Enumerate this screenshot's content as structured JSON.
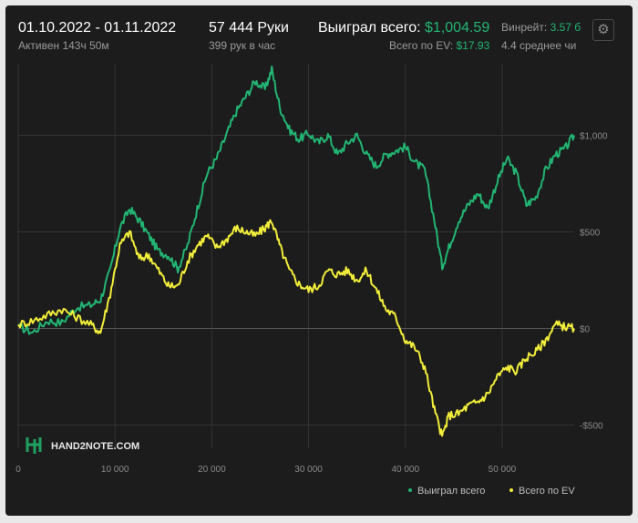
{
  "header": {
    "date_range": "01.10.2022 - 01.11.2022",
    "active": "Активен 143ч 50м",
    "hands": "57 444 Руки",
    "hands_per_hour": "399 рук в час",
    "won_label": "Выиграл всего:",
    "won_value": "$1,004.59",
    "ev_label": "Всего по EV:",
    "ev_value": "$17.93",
    "winrate_label": "Винрейт:",
    "winrate_value": "3.57 б",
    "avg_label": "4.4 среднее чи"
  },
  "logo": {
    "text": "HAND2NOTE.COM"
  },
  "colors": {
    "won": "#22b573",
    "ev": "#f2ee3a",
    "background": "#1c1c1c",
    "grid": "#333333",
    "zero": "#555555"
  },
  "chart_data": {
    "type": "line",
    "xlim": [
      0,
      57444
    ],
    "ylim": [
      -620,
      1370
    ],
    "x_ticks": [
      0,
      10000,
      20000,
      30000,
      40000,
      50000
    ],
    "x_tick_labels": [
      "0",
      "10 000",
      "20 000",
      "30 000",
      "40 000",
      "50 000"
    ],
    "y_ticks": [
      -500,
      0,
      500,
      1000
    ],
    "y_tick_labels": [
      "-$500",
      "$0",
      "$500",
      "$1,000"
    ],
    "legend_position": "bottom-right",
    "series": [
      {
        "name": "Выиграл всего",
        "color": "#22b573",
        "points": [
          [
            0,
            10
          ],
          [
            1500,
            -20
          ],
          [
            3000,
            40
          ],
          [
            4500,
            30
          ],
          [
            6000,
            110
          ],
          [
            7500,
            120
          ],
          [
            8500,
            150
          ],
          [
            9500,
            300
          ],
          [
            10500,
            520
          ],
          [
            11500,
            620
          ],
          [
            12500,
            560
          ],
          [
            13500,
            480
          ],
          [
            14500,
            400
          ],
          [
            15500,
            380
          ],
          [
            16500,
            310
          ],
          [
            17500,
            430
          ],
          [
            18500,
            620
          ],
          [
            19500,
            800
          ],
          [
            20500,
            880
          ],
          [
            21500,
            1000
          ],
          [
            22500,
            1120
          ],
          [
            23500,
            1200
          ],
          [
            24500,
            1280
          ],
          [
            25500,
            1240
          ],
          [
            26200,
            1340
          ],
          [
            27000,
            1150
          ],
          [
            28000,
            1030
          ],
          [
            29000,
            980
          ],
          [
            30000,
            1010
          ],
          [
            31000,
            960
          ],
          [
            32000,
            1000
          ],
          [
            33000,
            900
          ],
          [
            34000,
            960
          ],
          [
            35000,
            1000
          ],
          [
            36000,
            900
          ],
          [
            37000,
            840
          ],
          [
            38000,
            900
          ],
          [
            39000,
            920
          ],
          [
            40000,
            940
          ],
          [
            41000,
            860
          ],
          [
            42000,
            820
          ],
          [
            43000,
            560
          ],
          [
            43800,
            320
          ],
          [
            44500,
            420
          ],
          [
            45500,
            560
          ],
          [
            46500,
            640
          ],
          [
            47500,
            700
          ],
          [
            48500,
            620
          ],
          [
            49500,
            760
          ],
          [
            50500,
            880
          ],
          [
            51500,
            800
          ],
          [
            52500,
            640
          ],
          [
            53500,
            680
          ],
          [
            54500,
            820
          ],
          [
            55500,
            900
          ],
          [
            56500,
            930
          ],
          [
            57444,
            1000
          ]
        ]
      },
      {
        "name": "Всего по EV",
        "color": "#f2ee3a",
        "points": [
          [
            0,
            20
          ],
          [
            1500,
            40
          ],
          [
            3000,
            70
          ],
          [
            4500,
            100
          ],
          [
            6000,
            60
          ],
          [
            7500,
            20
          ],
          [
            8500,
            -20
          ],
          [
            9500,
            180
          ],
          [
            10500,
            430
          ],
          [
            11500,
            500
          ],
          [
            12500,
            360
          ],
          [
            13500,
            380
          ],
          [
            14500,
            300
          ],
          [
            15500,
            220
          ],
          [
            16500,
            220
          ],
          [
            17500,
            350
          ],
          [
            18500,
            430
          ],
          [
            19500,
            480
          ],
          [
            20500,
            420
          ],
          [
            21500,
            460
          ],
          [
            22500,
            520
          ],
          [
            23500,
            500
          ],
          [
            24500,
            480
          ],
          [
            25500,
            520
          ],
          [
            26200,
            560
          ],
          [
            27000,
            430
          ],
          [
            28000,
            300
          ],
          [
            29000,
            230
          ],
          [
            30000,
            200
          ],
          [
            31000,
            220
          ],
          [
            32000,
            300
          ],
          [
            33000,
            280
          ],
          [
            34000,
            300
          ],
          [
            35000,
            250
          ],
          [
            36000,
            300
          ],
          [
            37000,
            200
          ],
          [
            38000,
            100
          ],
          [
            39000,
            60
          ],
          [
            40000,
            -60
          ],
          [
            41000,
            -100
          ],
          [
            42000,
            -200
          ],
          [
            43000,
            -420
          ],
          [
            43800,
            -560
          ],
          [
            44500,
            -450
          ],
          [
            45500,
            -440
          ],
          [
            46500,
            -400
          ],
          [
            47500,
            -380
          ],
          [
            48500,
            -340
          ],
          [
            49500,
            -250
          ],
          [
            50500,
            -200
          ],
          [
            51500,
            -220
          ],
          [
            52500,
            -150
          ],
          [
            53500,
            -120
          ],
          [
            54500,
            -60
          ],
          [
            55500,
            20
          ],
          [
            56500,
            10
          ],
          [
            57444,
            0
          ]
        ]
      }
    ]
  }
}
